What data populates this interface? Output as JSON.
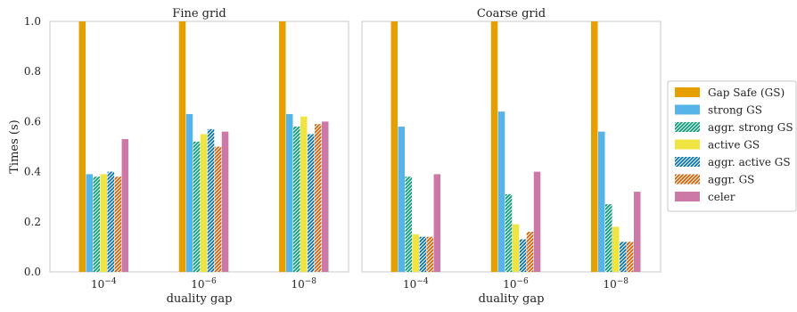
{
  "chart_data": [
    {
      "type": "bar",
      "title": "Fine grid",
      "xlabel": "duality gap",
      "ylabel": "Times (s)",
      "ylim": [
        0,
        1.0
      ],
      "yticks": [
        "0.0",
        "0.2",
        "0.4",
        "0.6",
        "0.8",
        "1.0"
      ],
      "categories": [
        "10^-4",
        "10^-6",
        "10^-8"
      ],
      "series": [
        {
          "name": "Gap Safe (GS)",
          "values": [
            1.0,
            1.0,
            1.0
          ]
        },
        {
          "name": "strong GS",
          "values": [
            0.39,
            0.63,
            0.63
          ]
        },
        {
          "name": "aggr. strong GS",
          "values": [
            0.38,
            0.52,
            0.58
          ]
        },
        {
          "name": "active GS",
          "values": [
            0.39,
            0.55,
            0.62
          ]
        },
        {
          "name": "aggr. active GS",
          "values": [
            0.4,
            0.57,
            0.55
          ]
        },
        {
          "name": "aggr. GS",
          "values": [
            0.38,
            0.5,
            0.59
          ]
        },
        {
          "name": "celer",
          "values": [
            0.53,
            0.56,
            0.6
          ]
        }
      ],
      "grid": false
    },
    {
      "type": "bar",
      "title": "Coarse grid",
      "xlabel": "duality gap",
      "ylabel": "",
      "ylim": [
        0,
        1.0
      ],
      "categories": [
        "10^-4",
        "10^-6",
        "10^-8"
      ],
      "series": [
        {
          "name": "Gap Safe (GS)",
          "values": [
            1.0,
            1.0,
            1.0
          ]
        },
        {
          "name": "strong GS",
          "values": [
            0.58,
            0.64,
            0.56
          ]
        },
        {
          "name": "aggr. strong GS",
          "values": [
            0.38,
            0.31,
            0.27
          ]
        },
        {
          "name": "active GS",
          "values": [
            0.15,
            0.19,
            0.18
          ]
        },
        {
          "name": "aggr. active GS",
          "values": [
            0.14,
            0.13,
            0.12
          ]
        },
        {
          "name": "aggr. GS",
          "values": [
            0.14,
            0.16,
            0.12
          ]
        },
        {
          "name": "celer",
          "values": [
            0.39,
            0.4,
            0.32
          ]
        }
      ],
      "grid": false
    }
  ],
  "legend": {
    "placement": "right",
    "items": [
      {
        "label": "Gap Safe (GS)",
        "color": "#e69f00",
        "hatched": false
      },
      {
        "label": "strong GS",
        "color": "#56b4e9",
        "hatched": false
      },
      {
        "label": "aggr. strong GS",
        "color": "#009e73",
        "hatched": true
      },
      {
        "label": "active GS",
        "color": "#f0e442",
        "hatched": false
      },
      {
        "label": "aggr. active GS",
        "color": "#0072b2",
        "hatched": true
      },
      {
        "label": "aggr. GS",
        "color": "#d55e00",
        "hatched": true
      },
      {
        "label": "celer",
        "color": "#cc79a7",
        "hatched": false
      }
    ]
  }
}
